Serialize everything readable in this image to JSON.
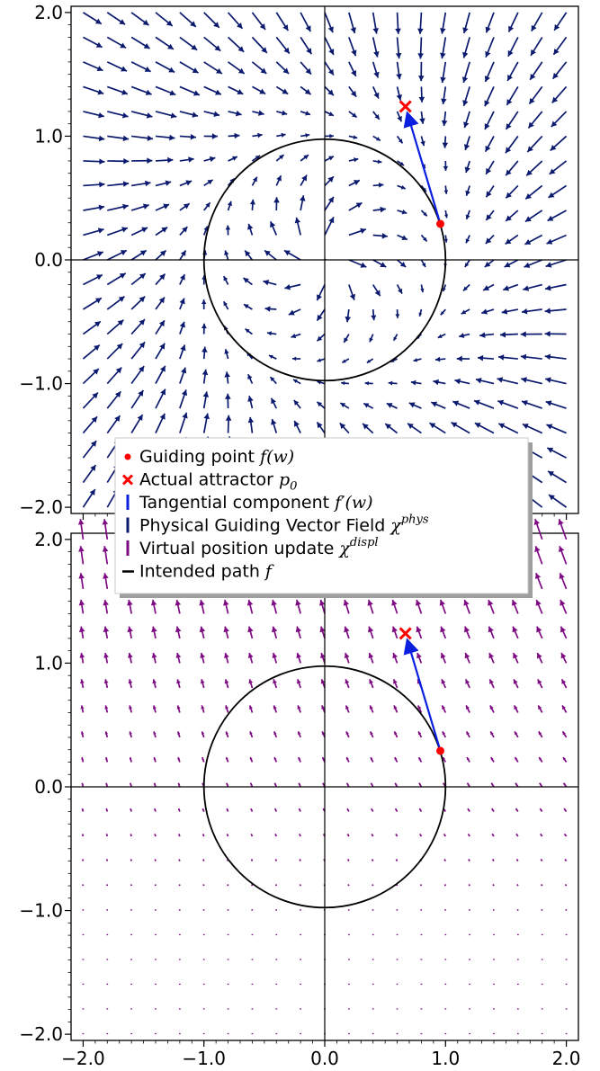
{
  "chart_data": [
    {
      "type": "quiver",
      "panel": "top",
      "field": "physical_guiding_vector_field",
      "arrow_color": "#0b1a6e",
      "xlim": [
        -2.1,
        2.1
      ],
      "ylim": [
        -2.05,
        2.05
      ],
      "x_ticks": [
        "-2.0",
        "-1.0",
        "0.0",
        "1.0",
        "2.0"
      ],
      "y_ticks": [
        "-2.0",
        "-1.0",
        "0.0",
        "1.0",
        "2.0"
      ],
      "grid": false,
      "circle": {
        "center": [
          0,
          0
        ],
        "radius": 1.0
      },
      "guiding_point": [
        0.957,
        0.291
      ],
      "attractor": [
        0.668,
        1.24
      ],
      "tangent_arrow": {
        "from": [
          0.957,
          0.291
        ],
        "to": [
          0.668,
          1.24
        ],
        "color": "#0a1fe0"
      }
    },
    {
      "type": "quiver",
      "panel": "bottom",
      "field": "virtual_position_update",
      "arrow_color": "#7d0a82",
      "xlim": [
        -2.1,
        2.1
      ],
      "ylim": [
        -2.05,
        2.05
      ],
      "x_ticks": [
        "-2.0",
        "-1.0",
        "0.0",
        "1.0",
        "2.0"
      ],
      "y_ticks": [
        "-2.0",
        "-1.0",
        "0.0",
        "1.0",
        "2.0"
      ],
      "grid": false,
      "circle": {
        "center": [
          0,
          0
        ],
        "radius": 1.0
      },
      "guiding_point": [
        0.957,
        0.291
      ],
      "attractor": [
        0.668,
        1.24
      ],
      "tangent_arrow": {
        "from": [
          0.957,
          0.291
        ],
        "to": [
          0.668,
          1.24
        ],
        "color": "#0a1fe0"
      }
    }
  ],
  "legend": {
    "placement": "center, overlapping both panels",
    "entries": [
      {
        "marker": "dot",
        "color": "#ff0000",
        "label": "Guiding point ",
        "math": "f(w)",
        "sup": ""
      },
      {
        "marker": "x",
        "color": "#ff0000",
        "label": "Actual attractor ",
        "math": "p",
        "sub": "0",
        "sup": ""
      },
      {
        "marker": "bar",
        "color": "#0a1fe0",
        "label": "Tangential component ",
        "math": "f′(w)",
        "sup": ""
      },
      {
        "marker": "bar",
        "color": "#0b1a6e",
        "label": "Physical Guiding Vector Field ",
        "math": "χ",
        "sup": "phys"
      },
      {
        "marker": "bar",
        "color": "#7d0a82",
        "label": "Virtual position update ",
        "math": "χ",
        "sup": "displ"
      },
      {
        "marker": "line",
        "color": "#000000",
        "label": "Intended path ",
        "math": "f",
        "sup": ""
      }
    ]
  }
}
